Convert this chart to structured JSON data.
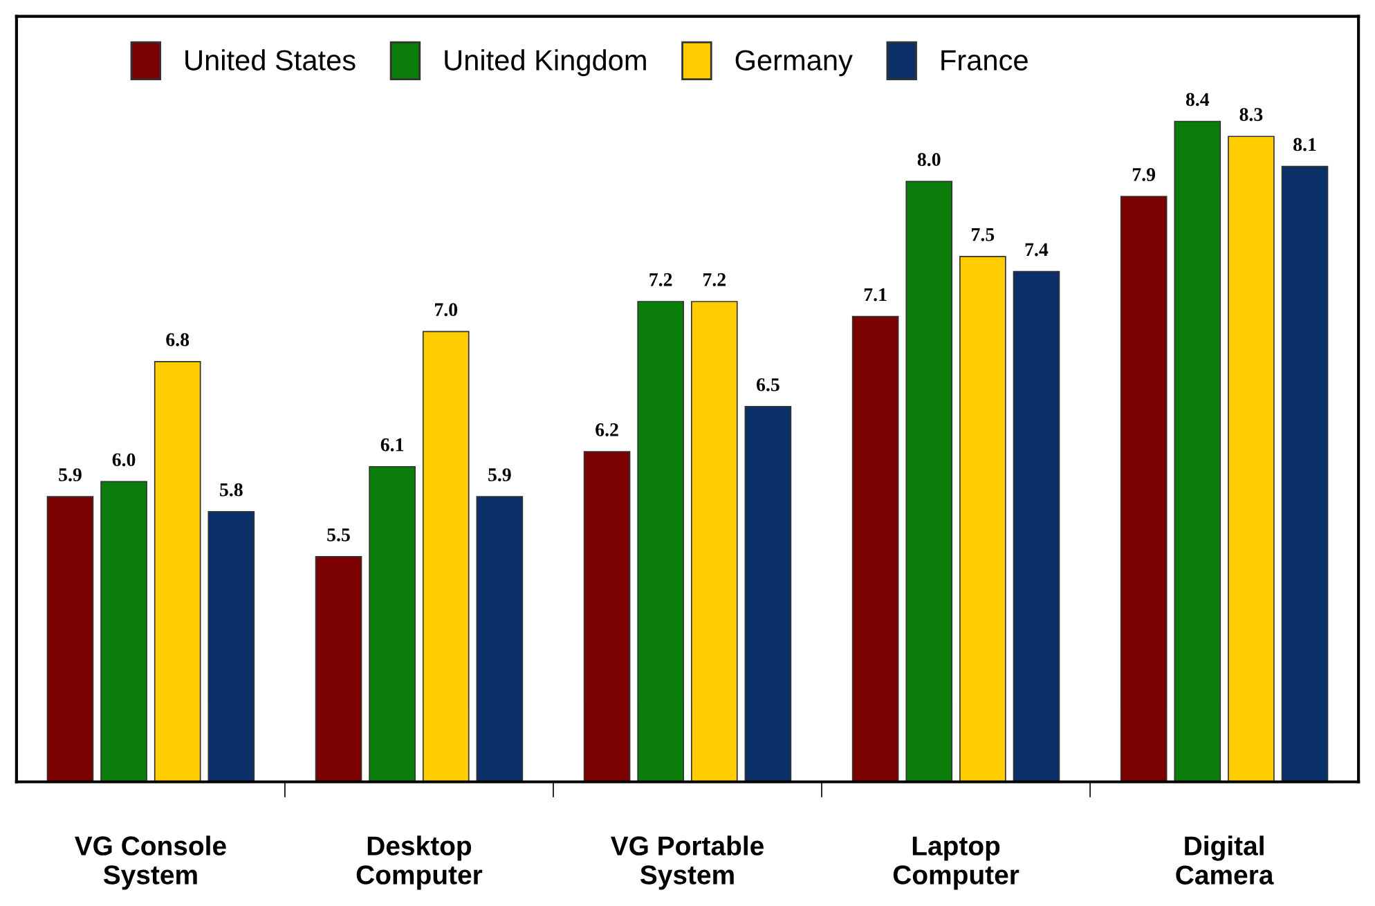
{
  "chart_data": {
    "type": "bar",
    "categories": [
      "VG Console\nSystem",
      "Desktop\nComputer",
      "VG Portable\nSystem",
      "Laptop\nComputer",
      "Digital\nCamera"
    ],
    "series": [
      {
        "name": "United States",
        "color": "#7b0000",
        "values": [
          5.9,
          5.5,
          6.2,
          7.1,
          7.9
        ],
        "value_labels": [
          "5.9",
          "5.5",
          "6.2",
          "7.1",
          "7.9"
        ]
      },
      {
        "name": "United Kingdom",
        "color": "#0b7d0b",
        "values": [
          6.0,
          6.1,
          7.2,
          8.0,
          8.4
        ],
        "value_labels": [
          "6.0",
          "6.1",
          "7.2",
          "8.0",
          "8.4"
        ]
      },
      {
        "name": "Germany",
        "color": "#ffcc00",
        "values": [
          6.8,
          7.0,
          7.2,
          7.5,
          8.3
        ],
        "value_labels": [
          "6.8",
          "7.0",
          "7.2",
          "7.5",
          "8.3"
        ]
      },
      {
        "name": "France",
        "color": "#0b3068",
        "values": [
          5.8,
          5.9,
          6.5,
          7.4,
          8.1
        ],
        "value_labels": [
          "5.8",
          "5.9",
          "6.5",
          "7.4",
          "8.1"
        ]
      }
    ],
    "ylim": [
      4,
      9.1
    ],
    "legend": "top",
    "grid": false
  }
}
